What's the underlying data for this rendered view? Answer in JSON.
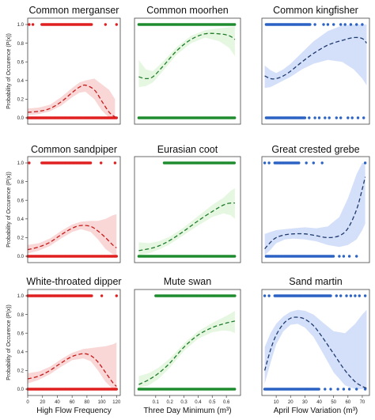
{
  "figure": {
    "ylabel": "Probability of Occurence (P(x))",
    "xlabels": [
      "High Flow Frequency",
      "Three Day Minimum (m³)",
      "April Flow Variation (m³)"
    ],
    "colors": {
      "red": "#e02020",
      "red_band": "#f9d3d3",
      "green": "#1e8c2e",
      "green_band": "#e3f6de",
      "blue": "#2b62c4",
      "blue_band": "#cfdcf8",
      "fit_line": "#1a1a1a"
    }
  },
  "chart_data": [
    {
      "type": "scatter",
      "title": "Common merganser",
      "color_key": "red",
      "xlim": [
        0,
        125
      ],
      "ylim": [
        0,
        1
      ],
      "show_x_ticks": false,
      "show_y_ticks": true,
      "xticks": [
        0,
        20,
        40,
        60,
        80,
        100,
        120
      ],
      "yticks": [
        0.0,
        0.2,
        0.4,
        0.6,
        0.8,
        1.0
      ],
      "points_y1": {
        "ranges": [
          [
            19,
            87
          ]
        ],
        "extra": [
          2,
          7,
          105,
          120
        ],
        "step": 1.2
      },
      "points_y0": {
        "ranges": [
          [
            0,
            120
          ]
        ],
        "extra": [],
        "step": 1.2
      },
      "fit": {
        "x": [
          0,
          15,
          30,
          45,
          60,
          70,
          78,
          90,
          100,
          110,
          118
        ],
        "y": [
          0.06,
          0.07,
          0.1,
          0.17,
          0.27,
          0.33,
          0.35,
          0.3,
          0.18,
          0.06,
          0.01
        ]
      },
      "band": {
        "lo": [
          0.03,
          0.04,
          0.07,
          0.13,
          0.22,
          0.27,
          0.28,
          0.2,
          0.08,
          0.0,
          0.0
        ],
        "hi": [
          0.1,
          0.11,
          0.14,
          0.22,
          0.32,
          0.38,
          0.4,
          0.42,
          0.36,
          0.3,
          0.2
        ]
      }
    },
    {
      "type": "scatter",
      "title": "Common moorhen",
      "color_key": "green",
      "xlim": [
        -0.05,
        0.7
      ],
      "ylim": [
        0,
        1
      ],
      "show_x_ticks": false,
      "show_y_ticks": false,
      "xticks": [
        0.1,
        0.2,
        0.3,
        0.4,
        0.5,
        0.6
      ],
      "yticks": [
        0.0,
        0.2,
        0.4,
        0.6,
        0.8,
        1.0
      ],
      "points_y1": {
        "ranges": [
          [
            -0.02,
            0.66
          ]
        ],
        "extra": [],
        "step": 0.007
      },
      "points_y0": {
        "ranges": [
          [
            -0.02,
            0.66
          ]
        ],
        "extra": [],
        "step": 0.007
      },
      "fit": {
        "x": [
          -0.02,
          0.03,
          0.08,
          0.15,
          0.25,
          0.35,
          0.45,
          0.55,
          0.62,
          0.66
        ],
        "y": [
          0.44,
          0.42,
          0.44,
          0.55,
          0.72,
          0.84,
          0.9,
          0.9,
          0.88,
          0.84
        ]
      },
      "band": {
        "lo": [
          0.33,
          0.34,
          0.38,
          0.5,
          0.68,
          0.8,
          0.86,
          0.82,
          0.75,
          0.66
        ],
        "hi": [
          0.62,
          0.52,
          0.5,
          0.6,
          0.76,
          0.88,
          0.94,
          0.96,
          0.97,
          0.98
        ]
      }
    },
    {
      "type": "scatter",
      "title": "Common kingfisher",
      "color_key": "blue",
      "xlim": [
        0,
        75
      ],
      "ylim": [
        0,
        1
      ],
      "show_x_ticks": false,
      "show_y_ticks": false,
      "xticks": [
        10,
        20,
        30,
        40,
        50,
        60,
        70
      ],
      "yticks": [
        0.0,
        0.2,
        0.4,
        0.6,
        0.8,
        1.0
      ],
      "points_y1": {
        "ranges": [
          [
            3,
            34
          ]
        ],
        "extra": [
          37,
          43,
          46,
          50,
          55,
          58,
          62,
          66,
          70
        ],
        "step": 0.6
      },
      "points_y0": {
        "ranges": [
          [
            3,
            30
          ]
        ],
        "extra": [
          33,
          37,
          40,
          44,
          47,
          52,
          55,
          60,
          63,
          67,
          71
        ],
        "step": 0.6
      },
      "fit": {
        "x": [
          2,
          6,
          10,
          15,
          20,
          28,
          36,
          46,
          56,
          64,
          70,
          73
        ],
        "y": [
          0.45,
          0.42,
          0.42,
          0.45,
          0.5,
          0.6,
          0.69,
          0.78,
          0.83,
          0.86,
          0.85,
          0.8
        ]
      },
      "band": {
        "lo": [
          0.32,
          0.33,
          0.36,
          0.4,
          0.44,
          0.52,
          0.58,
          0.62,
          0.6,
          0.52,
          0.42,
          0.35
        ],
        "hi": [
          0.56,
          0.51,
          0.48,
          0.52,
          0.58,
          0.7,
          0.82,
          0.93,
          0.99,
          1.0,
          1.0,
          1.0
        ]
      }
    },
    {
      "type": "scatter",
      "title": "Common sandpiper",
      "color_key": "red",
      "xlim": [
        0,
        125
      ],
      "ylim": [
        0,
        1
      ],
      "show_x_ticks": false,
      "show_y_ticks": true,
      "xticks": [
        0,
        20,
        40,
        60,
        80,
        100,
        120
      ],
      "yticks": [
        0.0,
        0.2,
        0.4,
        0.6,
        0.8,
        1.0
      ],
      "points_y1": {
        "ranges": [
          [
            19,
            85
          ]
        ],
        "extra": [
          2,
          99,
          118
        ],
        "step": 1.2
      },
      "points_y0": {
        "ranges": [
          [
            0,
            120
          ]
        ],
        "extra": [],
        "step": 1.2
      },
      "fit": {
        "x": [
          0,
          15,
          30,
          45,
          60,
          72,
          85,
          95,
          105,
          115,
          120
        ],
        "y": [
          0.07,
          0.1,
          0.15,
          0.23,
          0.3,
          0.33,
          0.32,
          0.27,
          0.2,
          0.12,
          0.09
        ]
      },
      "band": {
        "lo": [
          0.03,
          0.06,
          0.11,
          0.19,
          0.26,
          0.29,
          0.26,
          0.18,
          0.08,
          0.02,
          0.01
        ],
        "hi": [
          0.12,
          0.14,
          0.19,
          0.27,
          0.34,
          0.37,
          0.38,
          0.38,
          0.4,
          0.44,
          0.45
        ]
      }
    },
    {
      "type": "scatter",
      "title": "Eurasian coot",
      "color_key": "green",
      "xlim": [
        -0.05,
        0.7
      ],
      "ylim": [
        0,
        1
      ],
      "show_x_ticks": false,
      "show_y_ticks": false,
      "xticks": [
        0.1,
        0.2,
        0.3,
        0.4,
        0.5,
        0.6
      ],
      "yticks": [
        0.0,
        0.2,
        0.4,
        0.6,
        0.8,
        1.0
      ],
      "points_y1": {
        "ranges": [
          [
            0.16,
            0.66
          ]
        ],
        "extra": [],
        "step": 0.007
      },
      "points_y0": {
        "ranges": [
          [
            -0.02,
            0.66
          ]
        ],
        "extra": [],
        "step": 0.007
      },
      "fit": {
        "x": [
          -0.02,
          0.05,
          0.12,
          0.2,
          0.3,
          0.4,
          0.5,
          0.58,
          0.63,
          0.66
        ],
        "y": [
          0.06,
          0.08,
          0.11,
          0.17,
          0.27,
          0.38,
          0.48,
          0.55,
          0.57,
          0.57
        ]
      },
      "band": {
        "lo": [
          0.01,
          0.03,
          0.07,
          0.13,
          0.23,
          0.33,
          0.42,
          0.46,
          0.44,
          0.4
        ],
        "hi": [
          0.15,
          0.14,
          0.16,
          0.21,
          0.31,
          0.43,
          0.55,
          0.63,
          0.7,
          0.73
        ]
      }
    },
    {
      "type": "scatter",
      "title": "Great crested grebe",
      "color_key": "blue",
      "xlim": [
        0,
        75
      ],
      "ylim": [
        0,
        1
      ],
      "show_x_ticks": false,
      "show_y_ticks": false,
      "xticks": [
        10,
        20,
        30,
        40,
        50,
        60,
        70
      ],
      "yticks": [
        0.0,
        0.2,
        0.4,
        0.6,
        0.8,
        1.0
      ],
      "points_y1": {
        "ranges": [
          [
            9,
            26
          ]
        ],
        "extra": [
          2,
          5,
          31,
          36,
          42,
          72
        ],
        "step": 0.7
      },
      "points_y0": {
        "ranges": [
          [
            3,
            50
          ]
        ],
        "extra": [
          54,
          57,
          61,
          66
        ],
        "step": 0.7
      },
      "fit": {
        "x": [
          2,
          6,
          10,
          16,
          22,
          30,
          38,
          46,
          54,
          60,
          66,
          70,
          72
        ],
        "y": [
          0.08,
          0.15,
          0.2,
          0.23,
          0.24,
          0.24,
          0.22,
          0.2,
          0.22,
          0.3,
          0.5,
          0.72,
          0.85
        ]
      },
      "band": {
        "lo": [
          0.01,
          0.07,
          0.14,
          0.18,
          0.19,
          0.18,
          0.16,
          0.12,
          0.1,
          0.12,
          0.18,
          0.28,
          0.35
        ],
        "hi": [
          0.24,
          0.26,
          0.28,
          0.29,
          0.3,
          0.31,
          0.3,
          0.32,
          0.42,
          0.62,
          0.88,
          1.0,
          1.0
        ]
      }
    },
    {
      "type": "scatter",
      "title": "White-throated dipper",
      "color_key": "red",
      "xlim": [
        0,
        125
      ],
      "ylim": [
        0,
        1
      ],
      "show_x_ticks": true,
      "show_y_ticks": true,
      "xticks": [
        0,
        20,
        40,
        60,
        80,
        100,
        120
      ],
      "yticks": [
        0.0,
        0.2,
        0.4,
        0.6,
        0.8,
        1.0
      ],
      "points_y1": {
        "ranges": [
          [
            0,
            87
          ]
        ],
        "extra": [
          100,
          120
        ],
        "step": 1.2
      },
      "points_y0": {
        "ranges": [
          [
            0,
            120
          ]
        ],
        "extra": [],
        "step": 1.2
      },
      "fit": {
        "x": [
          0,
          15,
          30,
          45,
          60,
          75,
          85,
          95,
          105,
          115,
          120
        ],
        "y": [
          0.11,
          0.14,
          0.2,
          0.28,
          0.35,
          0.38,
          0.36,
          0.29,
          0.18,
          0.07,
          0.03
        ]
      },
      "band": {
        "lo": [
          0.06,
          0.1,
          0.16,
          0.24,
          0.31,
          0.33,
          0.3,
          0.2,
          0.08,
          0.0,
          0.0
        ],
        "hi": [
          0.17,
          0.19,
          0.24,
          0.32,
          0.39,
          0.43,
          0.44,
          0.45,
          0.46,
          0.48,
          0.5
        ]
      }
    },
    {
      "type": "scatter",
      "title": "Mute swan",
      "color_key": "green",
      "xlim": [
        -0.05,
        0.7
      ],
      "ylim": [
        0,
        1
      ],
      "show_x_ticks": true,
      "show_y_ticks": false,
      "xticks": [
        0.1,
        0.2,
        0.3,
        0.4,
        0.5,
        0.6
      ],
      "yticks": [
        0.0,
        0.2,
        0.4,
        0.6,
        0.8,
        1.0
      ],
      "points_y1": {
        "ranges": [
          [
            0.1,
            0.66
          ]
        ],
        "extra": [],
        "step": 0.007
      },
      "points_y0": {
        "ranges": [
          [
            -0.02,
            0.66
          ]
        ],
        "extra": [],
        "step": 0.007
      },
      "fit": {
        "x": [
          -0.02,
          0.05,
          0.12,
          0.2,
          0.3,
          0.4,
          0.5,
          0.58,
          0.63,
          0.66
        ],
        "y": [
          0.05,
          0.1,
          0.17,
          0.28,
          0.45,
          0.58,
          0.66,
          0.7,
          0.72,
          0.73
        ]
      },
      "band": {
        "lo": [
          0.01,
          0.04,
          0.11,
          0.23,
          0.41,
          0.54,
          0.61,
          0.63,
          0.62,
          0.6
        ],
        "hi": [
          0.14,
          0.17,
          0.23,
          0.33,
          0.49,
          0.62,
          0.71,
          0.77,
          0.81,
          0.84
        ]
      }
    },
    {
      "type": "scatter",
      "title": "Sand martin",
      "color_key": "blue",
      "xlim": [
        0,
        75
      ],
      "ylim": [
        0,
        1
      ],
      "show_x_ticks": true,
      "show_y_ticks": false,
      "xticks": [
        10,
        20,
        30,
        40,
        50,
        60,
        70
      ],
      "yticks": [
        0.0,
        0.2,
        0.4,
        0.6,
        0.8,
        1.0
      ],
      "points_y1": {
        "ranges": [
          [
            9,
            48
          ]
        ],
        "extra": [
          2,
          5,
          52,
          55,
          59,
          62,
          65,
          68,
          72
        ],
        "step": 0.6
      },
      "points_y0": {
        "ranges": [
          [
            2,
            40
          ]
        ],
        "extra": [
          44,
          48,
          53,
          57,
          61,
          66,
          72
        ],
        "step": 0.6
      },
      "fit": {
        "x": [
          2,
          6,
          10,
          15,
          20,
          25,
          30,
          36,
          42,
          50,
          58,
          65,
          70,
          73
        ],
        "y": [
          0.2,
          0.42,
          0.58,
          0.7,
          0.76,
          0.77,
          0.75,
          0.68,
          0.56,
          0.38,
          0.2,
          0.08,
          0.03,
          0.01
        ]
      },
      "band": {
        "lo": [
          0.06,
          0.28,
          0.48,
          0.62,
          0.69,
          0.7,
          0.66,
          0.56,
          0.4,
          0.18,
          0.04,
          0.0,
          0.0,
          0.0
        ],
        "hi": [
          0.45,
          0.6,
          0.7,
          0.78,
          0.83,
          0.85,
          0.84,
          0.8,
          0.72,
          0.62,
          0.6,
          0.7,
          0.8,
          0.85
        ]
      }
    }
  ]
}
